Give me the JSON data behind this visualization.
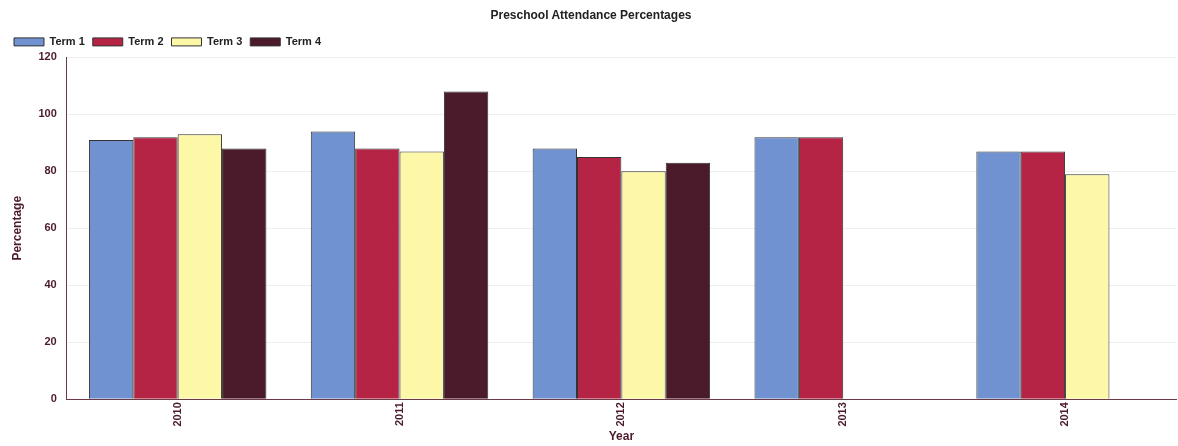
{
  "chart_data": {
    "type": "bar",
    "title": "Preschool Attendance Percentages",
    "xlabel": "Year",
    "ylabel": "Percentage",
    "categories": [
      "2010",
      "2011",
      "2012",
      "2013",
      "2014"
    ],
    "series": [
      {
        "name": "Term 1",
        "color": "#7092d0",
        "values": [
          91,
          94,
          88,
          92,
          87
        ]
      },
      {
        "name": "Term 2",
        "color": "#b52444",
        "values": [
          92,
          88,
          85,
          92,
          87
        ]
      },
      {
        "name": "Term 3",
        "color": "#fdf7a8",
        "values": [
          93,
          87,
          80,
          null,
          79
        ]
      },
      {
        "name": "Term 4",
        "color": "#4b1a2b",
        "values": [
          88,
          108,
          83,
          null,
          null
        ]
      }
    ],
    "ylim": [
      0,
      120
    ],
    "yticks": [
      0,
      20,
      40,
      60,
      80,
      100,
      120
    ],
    "grid": "y",
    "legend": "top left"
  }
}
